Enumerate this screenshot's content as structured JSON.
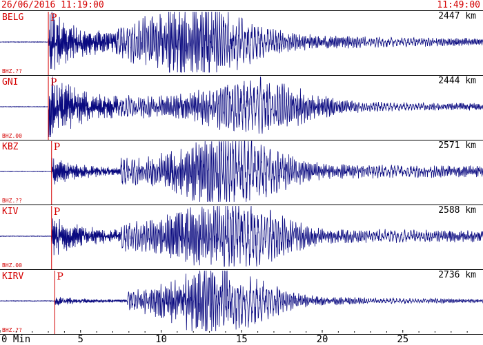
{
  "header": {
    "start_time": "26/06/2016 11:19:00",
    "end_time": "11:49:00"
  },
  "colors": {
    "trace": "#0a0a80",
    "annotation": "#d40000",
    "frame": "#000000"
  },
  "chart_data": {
    "type": "line",
    "x_unit": "Min",
    "xlim": [
      0,
      30
    ],
    "x_ticks": [
      {
        "value": 0,
        "label": "0 Min"
      },
      {
        "value": 5,
        "label": "5"
      },
      {
        "value": 10,
        "label": "10"
      },
      {
        "value": 15,
        "label": "15"
      },
      {
        "value": 20,
        "label": "20"
      },
      {
        "value": 25,
        "label": "25"
      }
    ],
    "traces": [
      {
        "station": "BELG",
        "channel": "BHZ.??",
        "distance": "2447 km",
        "p_arrival_min": 3.0,
        "p_label": "P",
        "s_arrival_min": 7.2,
        "max_amp_min": 12.3,
        "amp_p": 0.85,
        "amp_s": 0.55,
        "amp_peak": 1.0,
        "coda": 0.12,
        "seed": 11
      },
      {
        "station": "GNI",
        "channel": "BHZ.00",
        "distance": "2444 km",
        "p_arrival_min": 3.0,
        "p_label": "P",
        "s_arrival_min": 7.3,
        "max_amp_min": 16.0,
        "amp_p": 0.95,
        "amp_s": 0.45,
        "amp_peak": 0.75,
        "coda": 0.12,
        "seed": 23
      },
      {
        "station": "KBZ",
        "channel": "BHZ.??",
        "distance": "2571 km",
        "p_arrival_min": 3.2,
        "p_label": "P",
        "s_arrival_min": 7.5,
        "max_amp_min": 14.3,
        "amp_p": 0.35,
        "amp_s": 0.5,
        "amp_peak": 1.0,
        "coda": 0.2,
        "seed": 37
      },
      {
        "station": "KIV",
        "channel": "BHZ.00",
        "distance": "2588 km",
        "p_arrival_min": 3.2,
        "p_label": "P",
        "s_arrival_min": 7.5,
        "max_amp_min": 14.3,
        "amp_p": 0.55,
        "amp_s": 0.55,
        "amp_peak": 1.0,
        "coda": 0.2,
        "seed": 51
      },
      {
        "station": "KIRV",
        "channel": "BHZ.??",
        "distance": "2736 km",
        "p_arrival_min": 3.4,
        "p_label": "P",
        "s_arrival_min": 7.9,
        "max_amp_min": 13.5,
        "amp_p": 0.12,
        "amp_s": 0.3,
        "amp_peak": 1.0,
        "coda": 0.08,
        "seed": 67
      }
    ]
  }
}
